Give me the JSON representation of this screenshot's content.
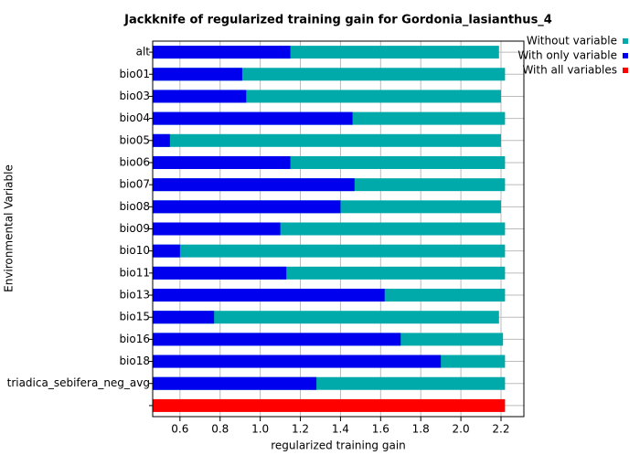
{
  "chart_data": {
    "type": "bar",
    "orientation": "horizontal",
    "overlay": true,
    "title": "Jackknife of regularized training gain for Gordonia_lasianthus_4",
    "x_label": "regularized training gain",
    "y_label": "Environmental Variable",
    "categories": [
      "alt",
      "bio01",
      "bio03",
      "bio04",
      "bio05",
      "bio06",
      "bio07",
      "bio08",
      "bio09",
      "bio10",
      "bio11",
      "bio13",
      "bio15",
      "bio16",
      "bio18",
      "triadica_sebifera_neg_avg",
      null
    ],
    "series": [
      {
        "name": "Without variable",
        "color": "#00aaaa",
        "values": [
          2.19,
          2.22,
          2.2,
          2.22,
          2.2,
          2.22,
          2.22,
          2.2,
          2.22,
          2.22,
          2.22,
          2.22,
          2.19,
          2.21,
          2.22,
          2.22,
          null
        ]
      },
      {
        "name": "With only variable",
        "color": "#0000ee",
        "values": [
          1.15,
          0.91,
          0.93,
          1.46,
          0.55,
          1.15,
          1.47,
          1.4,
          1.1,
          0.6,
          1.13,
          1.62,
          0.77,
          1.7,
          1.9,
          1.28,
          null
        ]
      },
      {
        "name": "With all variables",
        "color": "#ff0000",
        "values": [
          null,
          null,
          null,
          null,
          null,
          null,
          null,
          null,
          null,
          null,
          null,
          null,
          null,
          null,
          null,
          null,
          2.22
        ]
      }
    ],
    "xlim": [
      0.464,
      2.314
    ],
    "xticks": [
      {
        "value": 0.6,
        "label": "0.6"
      },
      {
        "value": 0.8,
        "label": "0.8"
      },
      {
        "value": 1.0,
        "label": "1.0"
      },
      {
        "value": 1.2,
        "label": "1.2"
      },
      {
        "value": 1.4,
        "label": "1.4"
      },
      {
        "value": 1.6,
        "label": "1.6"
      },
      {
        "value": 1.8,
        "label": "1.8"
      },
      {
        "value": 2.0,
        "label": "2.0"
      },
      {
        "value": 2.2,
        "label": "2.2"
      }
    ],
    "grid": true,
    "legend": "right-top"
  }
}
